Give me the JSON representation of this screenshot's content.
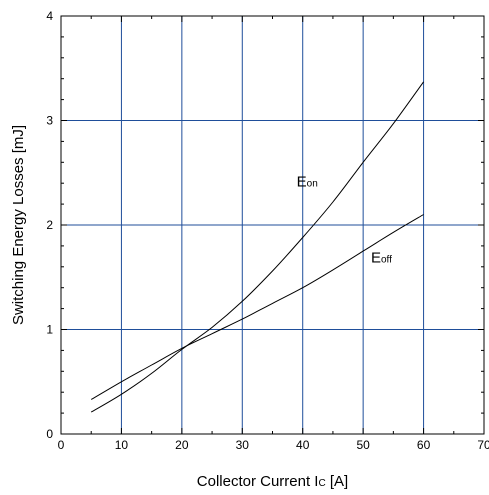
{
  "chart_data": {
    "type": "line",
    "title": "",
    "xlabel": "Collector Current I",
    "xlabel_sub": "C",
    "xlabel_suffix": " [A]",
    "ylabel": "Switching Energy Losses [mJ]",
    "xlim": [
      0,
      70
    ],
    "ylim": [
      0,
      4
    ],
    "x_ticks": [
      0,
      10,
      20,
      30,
      40,
      50,
      60,
      70
    ],
    "y_ticks": [
      0,
      1,
      2,
      3,
      4
    ],
    "grid": true,
    "grid_color": "#1f4e9a",
    "line_color": "#000000",
    "series": [
      {
        "name": "E",
        "name_sub": "on",
        "x": [
          5,
          10,
          15,
          20,
          25,
          30,
          35,
          40,
          45,
          50,
          55,
          60
        ],
        "y": [
          0.21,
          0.38,
          0.58,
          0.81,
          1.02,
          1.27,
          1.56,
          1.88,
          2.22,
          2.6,
          2.97,
          3.37
        ]
      },
      {
        "name": "E",
        "name_sub": "off",
        "x": [
          5,
          10,
          15,
          20,
          25,
          30,
          35,
          40,
          45,
          50,
          55,
          60
        ],
        "y": [
          0.33,
          0.5,
          0.66,
          0.82,
          0.96,
          1.1,
          1.25,
          1.4,
          1.57,
          1.75,
          1.93,
          2.1
        ]
      }
    ]
  }
}
